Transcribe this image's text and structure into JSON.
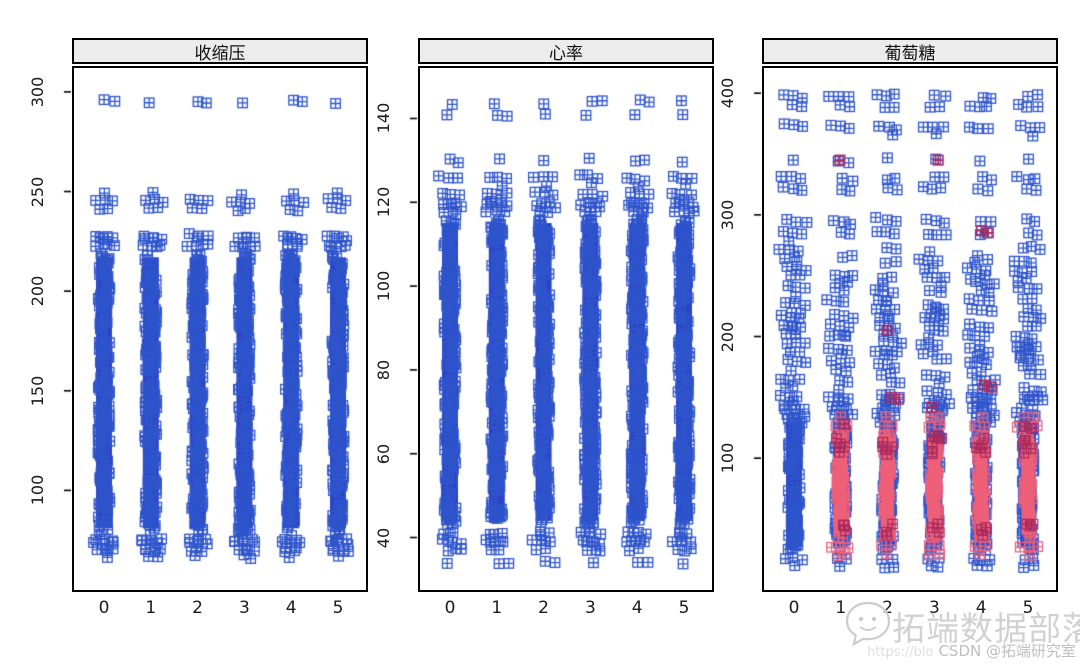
{
  "watermark": {
    "brand": "拓端数据部落",
    "attribution": "CSDN @拓端研究室",
    "url_fragment": "https://blo",
    "icon": "wechat-chat-bubble-icon"
  },
  "chart_data": {
    "type": "scatter",
    "style": "lattice-strip-plot-3-panels",
    "point_symbol": "squared-plus",
    "symbol_glyph": "⊞",
    "categories": [
      "0",
      "1",
      "2",
      "3",
      "4",
      "5"
    ],
    "legend": "none",
    "grid": "off",
    "colors": {
      "point_blue": "#2f55cc",
      "dense_blue_fill": "#2b42c6",
      "highlight_pink": "#ee6079",
      "highlight_crimson": "#a8295d",
      "strip_background": "#ececec",
      "panel_border": "#000000",
      "axis_text": "#1a1a1a"
    },
    "panels": [
      {
        "title": "收缩压",
        "yticks": [
          100,
          150,
          200,
          250,
          300
        ],
        "ylim": [
          49,
          314
        ],
        "dense_band": [
          79,
          219
        ],
        "top_clusters": [
          {
            "v": 295,
            "n": 1
          },
          {
            "v": 245,
            "n": 5
          },
          {
            "v": 227,
            "n": 4
          }
        ],
        "bottom_clusters": [
          {
            "v": 74,
            "n": 6
          },
          {
            "v": 67,
            "n": 1
          }
        ]
      },
      {
        "title": "心率",
        "yticks": [
          40,
          60,
          80,
          100,
          120,
          140
        ],
        "ylim": [
          27,
          153
        ],
        "dense_band": [
          43,
          116
        ],
        "top_clusters": [
          {
            "v": 144,
            "n": 1
          },
          {
            "v": 141,
            "n": 1
          },
          {
            "v": 130,
            "n": 1
          },
          {
            "v": 126,
            "n": 3
          },
          {
            "v": 122,
            "n": 4
          },
          {
            "v": 119,
            "n": 3
          }
        ],
        "bottom_clusters": [
          {
            "v": 39,
            "n": 6
          },
          {
            "v": 34,
            "n": 1
          }
        ]
      },
      {
        "title": "葡萄糖",
        "yticks": [
          100,
          200,
          300,
          400
        ],
        "ylim": [
          -10,
          424
        ],
        "dense_band": [
          24,
          134
        ],
        "pink_band": [
          34,
          120
        ],
        "pink_columns": [
          1,
          2,
          3,
          4,
          5
        ],
        "chain_band": {
          "range": [
            136,
            274
          ],
          "step": 10,
          "n_min": 2,
          "n_max": 6
        },
        "top_clusters": [
          {
            "v": 398,
            "n": 2
          },
          {
            "v": 390,
            "n": 2
          },
          {
            "v": 372,
            "n": 3
          },
          {
            "v": 345,
            "n": 1
          },
          {
            "v": 330,
            "n": 2
          },
          {
            "v": 322,
            "n": 2
          },
          {
            "v": 295,
            "n": 2
          },
          {
            "v": 285,
            "n": 2
          }
        ],
        "bottom_clusters": [],
        "red_points": [
          {
            "col": 1,
            "v": 345
          },
          {
            "col": 3,
            "v": 345
          },
          {
            "col": 4,
            "v": 287
          },
          {
            "col": 2,
            "v": 205
          },
          {
            "col": 4,
            "v": 160
          },
          {
            "col": 3,
            "v": 142
          },
          {
            "col": 2,
            "v": 150
          },
          {
            "col": 1,
            "v": 128
          },
          {
            "col": 5,
            "v": 126
          },
          {
            "col": 3,
            "v": 118
          }
        ]
      }
    ]
  }
}
